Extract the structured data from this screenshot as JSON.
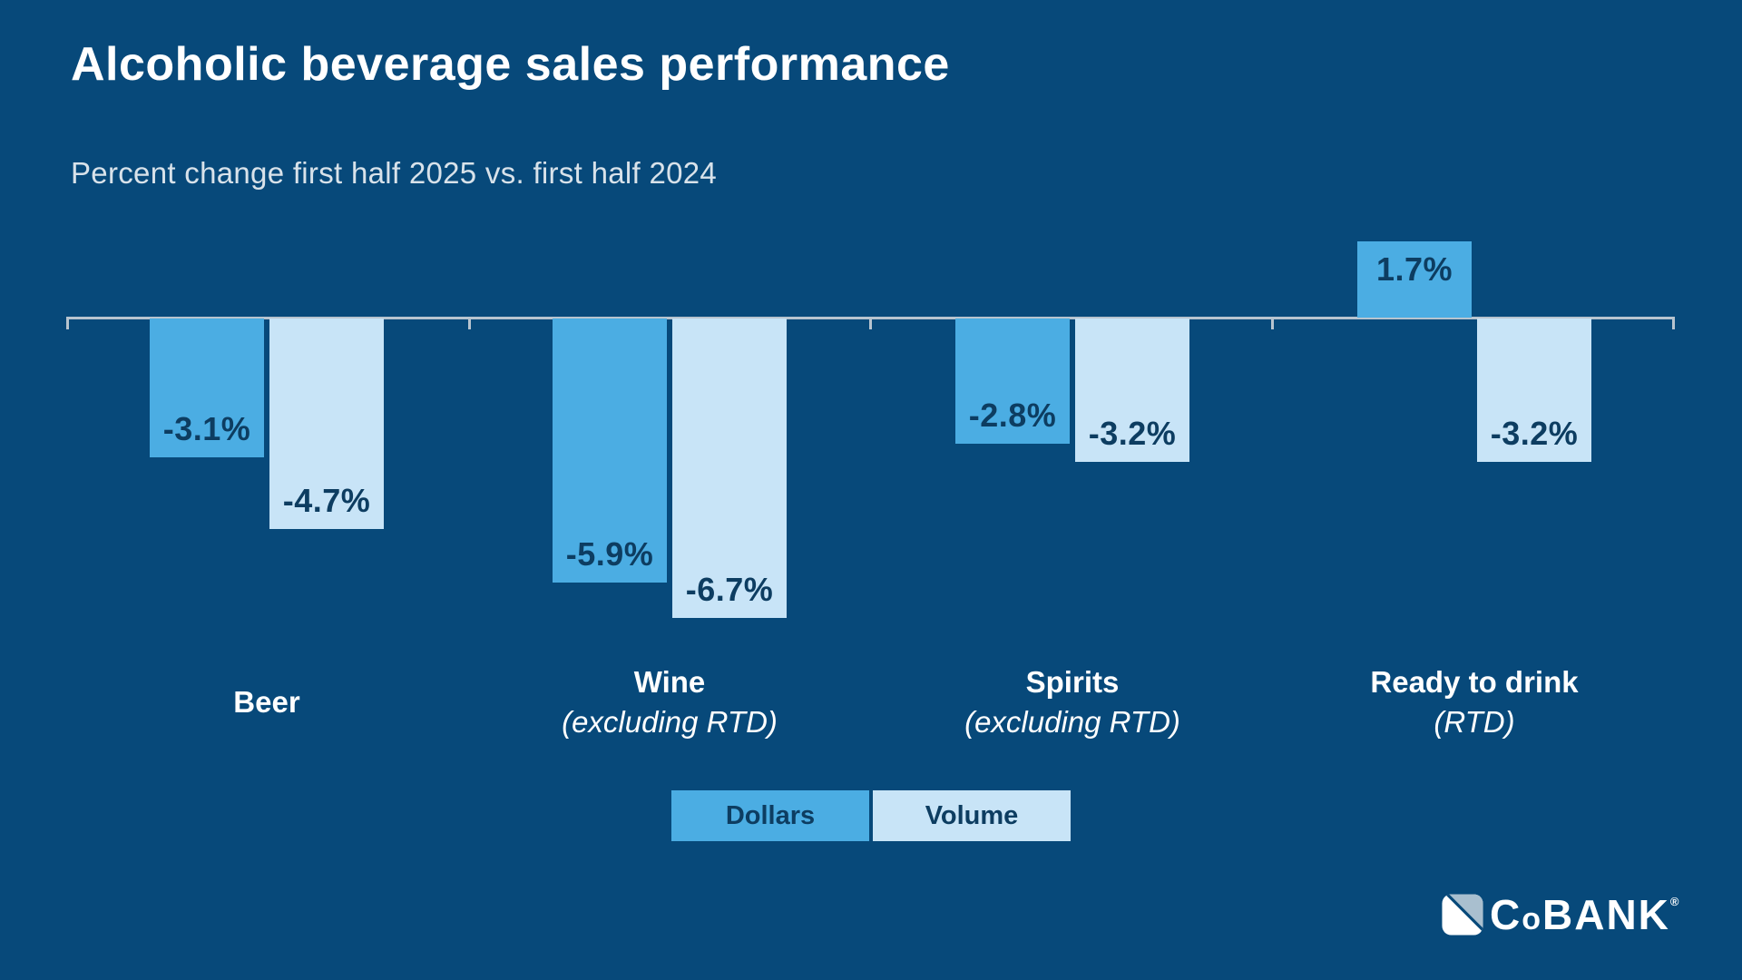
{
  "page": {
    "title": "Alcoholic beverage sales performance",
    "subtitle": "Percent change first half 2025 vs. first half 2024"
  },
  "colors": {
    "background": "#07497A",
    "dollars_bar": "#4BADE3",
    "volume_bar": "#C8E4F7",
    "value_label_text": "#0D3D61",
    "axis_line": "#B7C4CF",
    "title_text": "#FFFFFF",
    "subtitle_text": "#D8E2EA",
    "logo_icon_accent": "#A9BFCF"
  },
  "chart_data": {
    "type": "bar",
    "unit": "percent",
    "title": "Alcoholic beverage sales performance",
    "subtitle": "Percent change first half 2025 vs. first half 2024",
    "categories": [
      {
        "label": "Beer",
        "sublabel": ""
      },
      {
        "label": "Wine",
        "sublabel": "(excluding RTD)"
      },
      {
        "label": "Spirits",
        "sublabel": "(excluding RTD)"
      },
      {
        "label": "Ready to drink",
        "sublabel": "(RTD)"
      }
    ],
    "series": [
      {
        "name": "Dollars",
        "color": "#4BADE3",
        "values": [
          -3.1,
          -5.9,
          -2.8,
          1.7
        ],
        "labels": [
          "-3.1%",
          "-5.9%",
          "-2.8%",
          "1.7%"
        ]
      },
      {
        "name": "Volume",
        "color": "#C8E4F7",
        "values": [
          -4.7,
          -6.7,
          -3.2,
          -3.2
        ],
        "labels": [
          "-4.7%",
          "-6.7%",
          "-3.2%",
          "-3.2%"
        ]
      }
    ],
    "baseline": 0,
    "ylim": [
      -7.2,
      2.0
    ],
    "grid": false,
    "legend": [
      "Dollars",
      "Volume"
    ],
    "legend_position": "bottom-center",
    "value_labels_inside_bars": true
  },
  "branding": {
    "logo_c": "C",
    "logo_o": "o",
    "logo_bank": "BANK",
    "registered_mark": "®",
    "logo_name": "CoBANK"
  }
}
